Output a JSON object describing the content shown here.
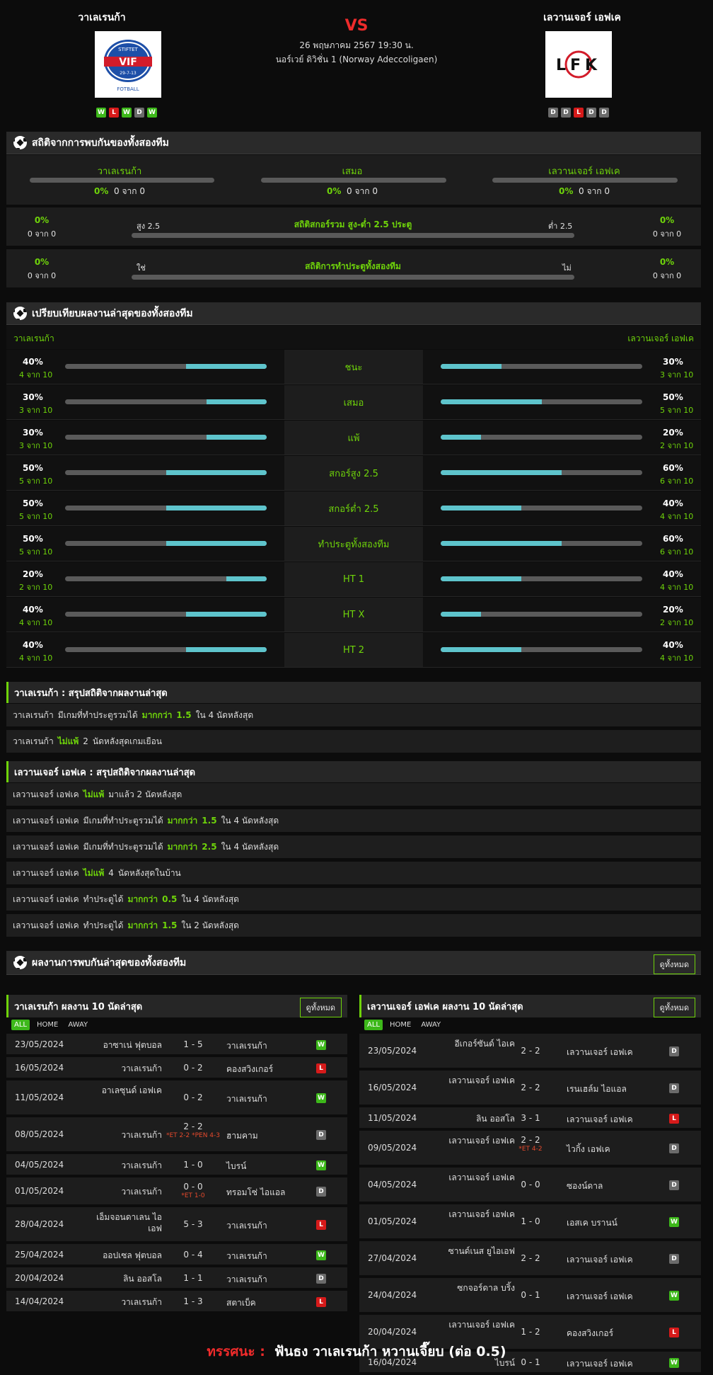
{
  "header": {
    "home": {
      "name": "วาเลเรนก้า",
      "logo_top": "STIFTET",
      "logo_mid": "VIF",
      "logo_date": "29-7-13",
      "logo_bottom": "FOTBALL",
      "form": [
        "W",
        "L",
        "W",
        "D",
        "W"
      ]
    },
    "away": {
      "name": "เลวานเจอร์ เอฟเค",
      "logo": "LFK",
      "form": [
        "D",
        "D",
        "L",
        "D",
        "D"
      ]
    },
    "vs": "VS",
    "date": "26 พฤษภาคม 2567 19:30 น.",
    "league": "นอร์เวย์ ดิวิชั่น 1 (Norway Adeccoligaen)"
  },
  "h2h": {
    "title": "สถิติจากการพบกันของทั้งสองทีม",
    "cols": [
      {
        "label": "วาเลเรนก้า",
        "pct": "0%",
        "sub": "0 จาก 0"
      },
      {
        "label": "เสมอ",
        "pct": "0%",
        "sub": "0 จาก 0"
      },
      {
        "label": "เลวานเจอร์ เอฟเค",
        "pct": "0%",
        "sub": "0 จาก 0"
      }
    ],
    "ou": {
      "title": "สถิติสกอร์รวม สูง-ต่ำ 2.5 ประตู",
      "left_label": "สูง 2.5",
      "right_label": "ต่ำ 2.5",
      "left_pct": "0%",
      "left_sub": "0 จาก 0",
      "right_pct": "0%",
      "right_sub": "0 จาก 0"
    },
    "btts": {
      "title": "สถิติการทำประตูทั้งสองทีม",
      "left_label": "ใช่",
      "right_label": "ไม่",
      "left_pct": "0%",
      "left_sub": "0 จาก 0",
      "right_pct": "0%",
      "right_sub": "0 จาก 0"
    }
  },
  "compare": {
    "title": "เปรียบเทียบผลงานล่าสุดของทั้งสองทีม",
    "home": "วาเลเรนก้า",
    "away": "เลวานเจอร์ เอฟเค",
    "rows": [
      {
        "label": "ชนะ",
        "hp": "40%",
        "hs": "4 จาก 10",
        "hv": 0.4,
        "ap": "30%",
        "as": "3 จาก 10",
        "av": 0.3
      },
      {
        "label": "เสมอ",
        "hp": "30%",
        "hs": "3 จาก 10",
        "hv": 0.3,
        "ap": "50%",
        "as": "5 จาก 10",
        "av": 0.5
      },
      {
        "label": "แพ้",
        "hp": "30%",
        "hs": "3 จาก 10",
        "hv": 0.3,
        "ap": "20%",
        "as": "2 จาก 10",
        "av": 0.2
      },
      {
        "label": "สกอร์สูง 2.5",
        "hp": "50%",
        "hs": "5 จาก 10",
        "hv": 0.5,
        "ap": "60%",
        "as": "6 จาก 10",
        "av": 0.6
      },
      {
        "label": "สกอร์ต่ำ 2.5",
        "hp": "50%",
        "hs": "5 จาก 10",
        "hv": 0.5,
        "ap": "40%",
        "as": "4 จาก 10",
        "av": 0.4
      },
      {
        "label": "ทำประตูทั้งสองทีม",
        "hp": "50%",
        "hs": "5 จาก 10",
        "hv": 0.5,
        "ap": "60%",
        "as": "6 จาก 10",
        "av": 0.6
      },
      {
        "label": "HT 1",
        "hp": "20%",
        "hs": "2 จาก 10",
        "hv": 0.2,
        "ap": "40%",
        "as": "4 จาก 10",
        "av": 0.4
      },
      {
        "label": "HT X",
        "hp": "40%",
        "hs": "4 จาก 10",
        "hv": 0.4,
        "ap": "20%",
        "as": "2 จาก 10",
        "av": 0.2
      },
      {
        "label": "HT 2",
        "hp": "40%",
        "hs": "4 จาก 10",
        "hv": 0.4,
        "ap": "40%",
        "as": "4 จาก 10",
        "av": 0.4
      }
    ]
  },
  "summary_home": {
    "title": "วาเลเรนก้า : สรุปสถิติจากผลงานล่าสุด",
    "rows": [
      {
        "team": "วาเลเรนก้า",
        "pre": "มีเกมที่ทำประตูรวมได้",
        "hl": "มากกว่า",
        "val": "1.5",
        "post": "ใน 4 นัดหลังสุด"
      },
      {
        "team": "วาเลเรนก้า",
        "pre": "",
        "hl": "ไม่แพ้",
        "val": "2",
        "post": "นัดหลังสุดเกมเยือน"
      }
    ]
  },
  "summary_away": {
    "title": "เลวานเจอร์ เอฟเค : สรุปสถิติจากผลงานล่าสุด",
    "rows": [
      {
        "team": "เลวานเจอร์ เอฟเค",
        "pre": "",
        "hl": "ไม่แพ้",
        "val": "",
        "post": "มาแล้ว 2 นัดหลังสุด"
      },
      {
        "team": "เลวานเจอร์ เอฟเค",
        "pre": "มีเกมที่ทำประตูรวมได้",
        "hl": "มากกว่า",
        "val": "1.5",
        "post": "ใน 4 นัดหลังสุด"
      },
      {
        "team": "เลวานเจอร์ เอฟเค",
        "pre": "มีเกมที่ทำประตูรวมได้",
        "hl": "มากกว่า",
        "val": "2.5",
        "post": "ใน 4 นัดหลังสุด"
      },
      {
        "team": "เลวานเจอร์ เอฟเค",
        "pre": "",
        "hl": "ไม่แพ้",
        "val": "4",
        "post": "นัดหลังสุดในบ้าน"
      },
      {
        "team": "เลวานเจอร์ เอฟเค",
        "pre": "ทำประตูได้",
        "hl": "มากกว่า",
        "val": "0.5",
        "post": "ใน 4 นัดหลังสุด"
      },
      {
        "team": "เลวานเจอร์ เอฟเค",
        "pre": "ทำประตูได้",
        "hl": "มากกว่า",
        "val": "1.5",
        "post": "ใน 2 นัดหลังสุด"
      }
    ]
  },
  "recent_h2h": {
    "title": "ผลงานการพบกันล่าสุดของทั้งสองทีม",
    "view_all": "ดูทั้งหมด"
  },
  "home_form": {
    "title": "วาเลเรนก้า ผลงาน 10 นัดล่าสุด",
    "view_all": "ดูทั้งหมด",
    "filters": [
      "ALL",
      "HOME",
      "AWAY"
    ],
    "matches": [
      {
        "date": "23/05/2024",
        "home": "อาซาเน่ ฟุตบอล",
        "score": "1 - 5",
        "note": "",
        "away": "วาเลเรนก้า",
        "res": "W"
      },
      {
        "date": "16/05/2024",
        "home": "วาเลเรนก้า",
        "score": "0 - 2",
        "note": "",
        "away": "คองสวิงเกอร์",
        "res": "L"
      },
      {
        "date": "11/05/2024",
        "home": "อาเลซุนด์ เอฟเค",
        "score": "0 - 2",
        "note": "",
        "away": "วาเลเรนก้า",
        "res": "W"
      },
      {
        "date": "08/05/2024",
        "home": "วาเลเรนก้า",
        "score": "2 - 2",
        "note": "*ET 2-2 *PEN 4-3",
        "away": "ฮามคาม",
        "res": "D"
      },
      {
        "date": "04/05/2024",
        "home": "วาเลเรนก้า",
        "score": "1 - 0",
        "note": "",
        "away": "ไบรน์",
        "res": "W"
      },
      {
        "date": "01/05/2024",
        "home": "วาเลเรนก้า",
        "score": "0 - 0",
        "note": "*ET 1-0",
        "away": "ทรอมโซ่ ไอแอล",
        "res": "D"
      },
      {
        "date": "28/04/2024",
        "home": "เอ็มจอนดาเลน ไอเอฟ",
        "score": "5 - 3",
        "note": "",
        "away": "วาเลเรนก้า",
        "res": "L"
      },
      {
        "date": "25/04/2024",
        "home": "ออปเซล ฟุตบอล",
        "score": "0 - 4",
        "note": "",
        "away": "วาเลเรนก้า",
        "res": "W"
      },
      {
        "date": "20/04/2024",
        "home": "ลิน ออสโล",
        "score": "1 - 1",
        "note": "",
        "away": "วาเลเรนก้า",
        "res": "D"
      },
      {
        "date": "14/04/2024",
        "home": "วาเลเรนก้า",
        "score": "1 - 3",
        "note": "",
        "away": "สตาเบ็ค",
        "res": "L"
      }
    ]
  },
  "away_form": {
    "title": "เลวานเจอร์ เอฟเค ผลงาน 10 นัดล่าสุด",
    "view_all": "ดูทั้งหมด",
    "filters": [
      "ALL",
      "HOME",
      "AWAY"
    ],
    "matches": [
      {
        "date": "23/05/2024",
        "home": "อีเกอร์ซันด์ ไอเค",
        "score": "2 - 2",
        "note": "",
        "away": "เลวานเจอร์ เอฟเค",
        "res": "D"
      },
      {
        "date": "16/05/2024",
        "home": "เลวานเจอร์ เอฟเค",
        "score": "2 - 2",
        "note": "",
        "away": "เรนเฮล์ม ไอแอล",
        "res": "D"
      },
      {
        "date": "11/05/2024",
        "home": "ลิน ออสโล",
        "score": "3 - 1",
        "note": "",
        "away": "เลวานเจอร์ เอฟเค",
        "res": "L"
      },
      {
        "date": "09/05/2024",
        "home": "เลวานเจอร์ เอฟเค",
        "score": "2 - 2",
        "note": "*ET 4-2",
        "away": "ไวกิ้ง เอฟเค",
        "res": "D"
      },
      {
        "date": "04/05/2024",
        "home": "เลวานเจอร์ เอฟเค",
        "score": "0 - 0",
        "note": "",
        "away": "ซองน์ดาล",
        "res": "D"
      },
      {
        "date": "01/05/2024",
        "home": "เลวานเจอร์ เอฟเค",
        "score": "1 - 0",
        "note": "",
        "away": "เอสเค บรานน์",
        "res": "W"
      },
      {
        "date": "27/04/2024",
        "home": "ซานด์เนส ยูไอเอฟ",
        "score": "2 - 2",
        "note": "",
        "away": "เลวานเจอร์ เอฟเค",
        "res": "D"
      },
      {
        "date": "24/04/2024",
        "home": "ซกจอร์ดาล บริ้ง",
        "score": "0 - 1",
        "note": "",
        "away": "เลวานเจอร์ เอฟเค",
        "res": "W"
      },
      {
        "date": "20/04/2024",
        "home": "เลวานเจอร์ เอฟเค",
        "score": "1 - 2",
        "note": "",
        "away": "คองสวิงเกอร์",
        "res": "L"
      },
      {
        "date": "16/04/2024",
        "home": "ไบรน์",
        "score": "0 - 1",
        "note": "",
        "away": "เลวานเจอร์ เอฟเค",
        "res": "W"
      }
    ]
  },
  "prediction": {
    "label": "ทรรศนะ :",
    "text": "ฟันธง วาเลเรนก้า หวานเจี๊ยบ (ต่อ 0.5)"
  },
  "colors": {
    "accent": "#6fd40a",
    "vs": "#ee2b2b",
    "bar_fill": "#5ec4cc",
    "win": "#3db81a",
    "loss": "#d61a1a",
    "draw": "#6b6b6b"
  }
}
